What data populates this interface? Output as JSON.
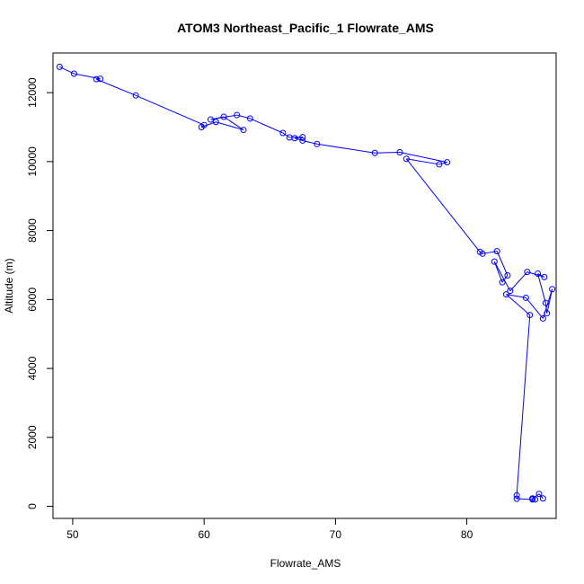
{
  "chart_data": {
    "type": "line",
    "title": "ATOM3 Northeast_Pacific_1 Flowrate_AMS",
    "xlabel": "Flowrate_AMS",
    "ylabel": "Altitude (m)",
    "xlim": [
      48.5,
      86.8
    ],
    "ylim": [
      -350,
      13150
    ],
    "xticks": [
      50,
      60,
      70,
      80
    ],
    "yticks": [
      0,
      2000,
      4000,
      6000,
      8000,
      10000,
      12000
    ],
    "grid": false,
    "legend": "none",
    "series_color": "#0000ff",
    "series": [
      {
        "x": [
          49.0,
          50.1,
          52.1,
          51.8,
          54.8,
          60.0,
          59.8,
          60.9,
          63.0,
          61.5,
          60.5,
          62.5,
          63.5,
          66.0,
          66.5,
          67.5,
          66.9,
          67.5,
          68.6,
          73.0,
          74.9,
          78.5,
          77.9,
          75.4,
          81.0,
          81.2,
          82.3,
          83.1,
          82.7,
          82.1,
          83.3,
          84.6,
          85.9,
          85.4,
          86.0,
          86.1,
          86.5,
          85.8,
          84.5,
          83.0,
          84.8,
          83.8,
          83.8,
          85.0,
          85.0,
          85.2,
          85.0,
          85.5,
          85.8
        ],
        "y": [
          12750,
          12550,
          12400,
          12390,
          11920,
          11060,
          11000,
          11150,
          10920,
          11300,
          11220,
          11350,
          11250,
          10830,
          10700,
          10710,
          10680,
          10610,
          10510,
          10250,
          10270,
          9980,
          9920,
          10080,
          7380,
          7330,
          7400,
          6700,
          6500,
          7100,
          6250,
          6800,
          6650,
          6750,
          5900,
          5600,
          6300,
          5450,
          6050,
          6150,
          5550,
          320,
          220,
          200,
          220,
          200,
          230,
          360,
          230
        ]
      }
    ]
  }
}
